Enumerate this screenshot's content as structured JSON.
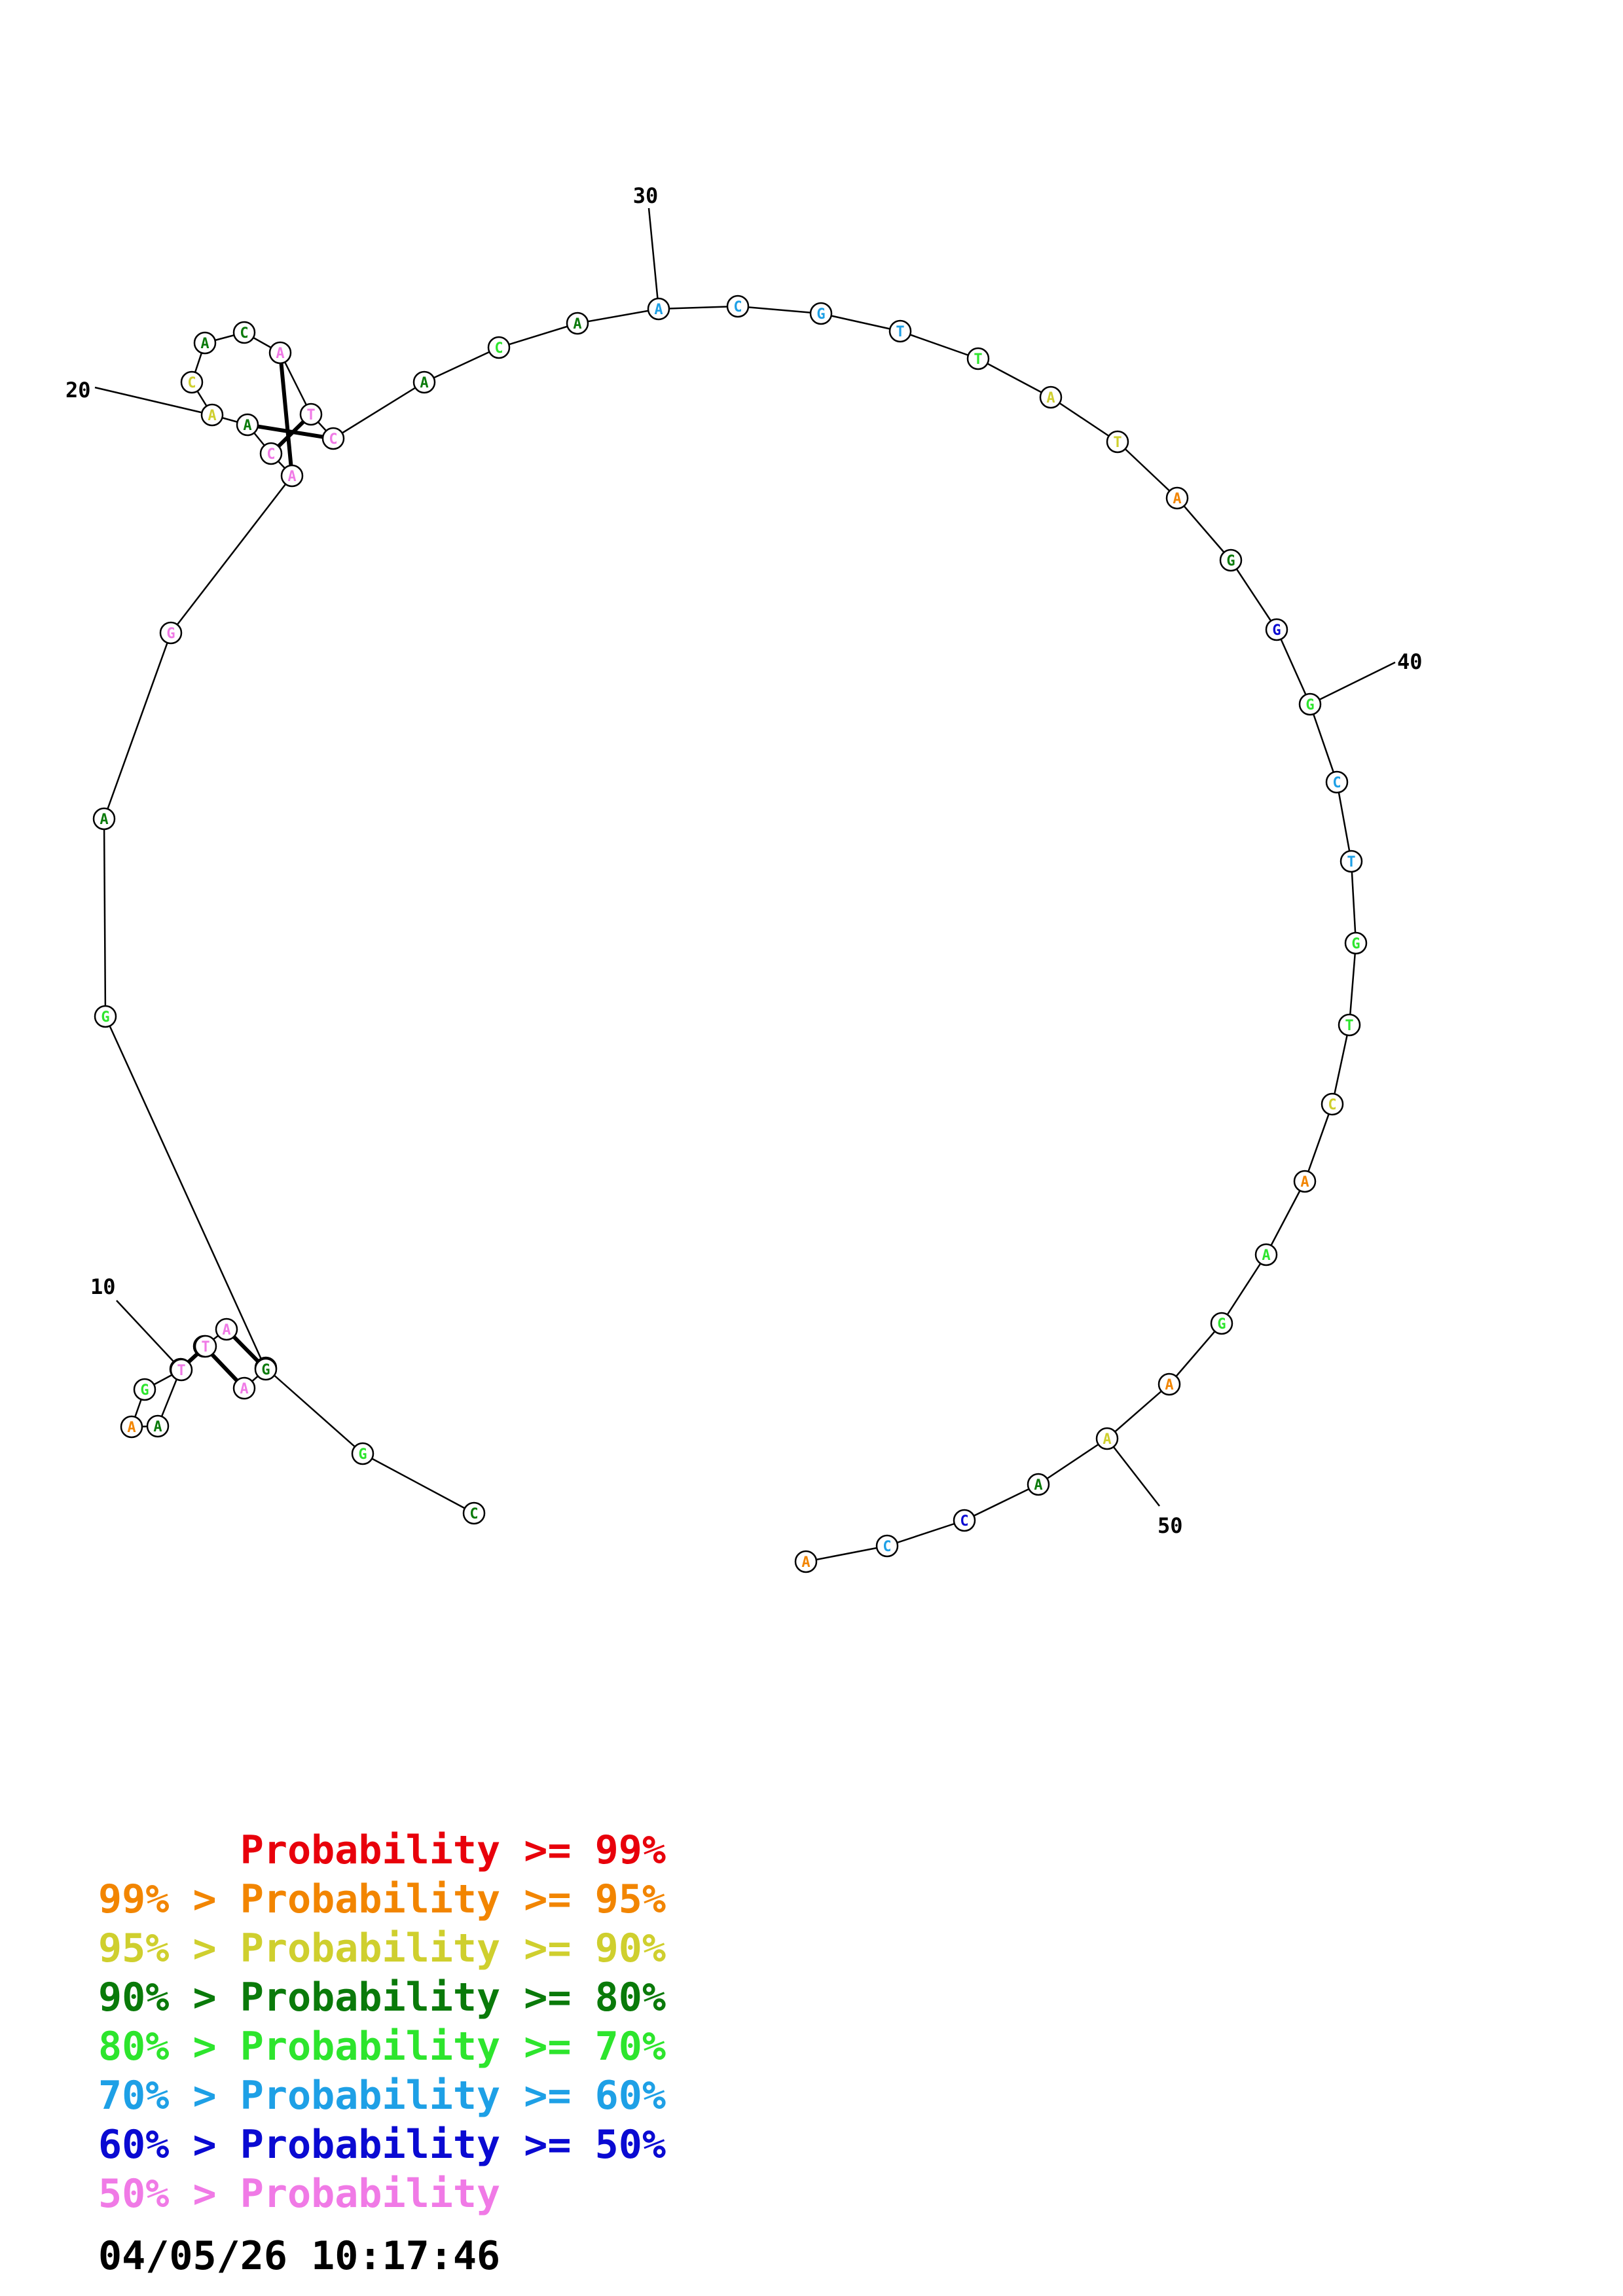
{
  "colors": {
    "p99": "#e8000b",
    "p95": "#f28500",
    "p90": "#cfcf2e",
    "p80": "#0a7a0a",
    "p70": "#2de52d",
    "p60": "#1ea0e6",
    "p50": "#0a0ad2",
    "plow": "#f07ae6"
  },
  "sequence": [
    "C",
    "G",
    "T",
    "A",
    "A",
    "G",
    "A",
    "A",
    "G",
    "T",
    "T",
    "A",
    "G",
    "G",
    "A",
    "G",
    "A",
    "C",
    "A",
    "A",
    "C",
    "A",
    "C",
    "A",
    "T",
    "C",
    "A",
    "C",
    "A",
    "A",
    "C",
    "G",
    "T",
    "T",
    "A",
    "T",
    "A",
    "G",
    "G",
    "G",
    "C",
    "T",
    "G",
    "T",
    "C",
    "A",
    "A",
    "G",
    "A",
    "A",
    "A",
    "C",
    "C",
    "A"
  ],
  "probability_class": [
    "p80",
    "p70",
    "plow",
    "plow",
    "plow",
    "p80",
    "p80",
    "p95",
    "p70",
    "plow",
    "plow",
    "plow",
    "p80",
    "p70",
    "p80",
    "plow",
    "plow",
    "plow",
    "p80",
    "p90",
    "p90",
    "p80",
    "p80",
    "plow",
    "plow",
    "plow",
    "p80",
    "p70",
    "p80",
    "p60",
    "p60",
    "p60",
    "p60",
    "p70",
    "p90",
    "p90",
    "p95",
    "p80",
    "p50",
    "p70",
    "p60",
    "p60",
    "p70",
    "p70",
    "p90",
    "p95",
    "p70",
    "p70",
    "p95",
    "p90",
    "p80",
    "p50",
    "p60",
    "p95"
  ],
  "base_pairs": [
    [
      3,
      12
    ],
    [
      4,
      11
    ],
    [
      5,
      10
    ],
    [
      23,
      16
    ],
    [
      24,
      17
    ],
    [
      25,
      18
    ]
  ],
  "position_labels": [
    {
      "index": 10,
      "text": "10"
    },
    {
      "index": 20,
      "text": "20"
    },
    {
      "index": 30,
      "text": "30"
    },
    {
      "index": 40,
      "text": "40"
    },
    {
      "index": 50,
      "text": "50"
    }
  ],
  "legend": [
    {
      "prefix": "",
      "label": "Probability",
      "suffix": ">= 99%",
      "color_key": "p99"
    },
    {
      "prefix": "99% >",
      "label": "Probability",
      "suffix": ">= 95%",
      "color_key": "p95"
    },
    {
      "prefix": "95% >",
      "label": "Probability",
      "suffix": ">= 90%",
      "color_key": "p90"
    },
    {
      "prefix": "90% >",
      "label": "Probability",
      "suffix": ">= 80%",
      "color_key": "p80"
    },
    {
      "prefix": "80% >",
      "label": "Probability",
      "suffix": ">= 70%",
      "color_key": "p70"
    },
    {
      "prefix": "70% >",
      "label": "Probability",
      "suffix": ">= 60%",
      "color_key": "p60"
    },
    {
      "prefix": "60% >",
      "label": "Probability",
      "suffix": ">= 50%",
      "color_key": "p50"
    },
    {
      "prefix": "50% >",
      "label": "Probability",
      "suffix": "",
      "color_key": "plow"
    }
  ],
  "timestamp": "04/05/26 10:17:46"
}
